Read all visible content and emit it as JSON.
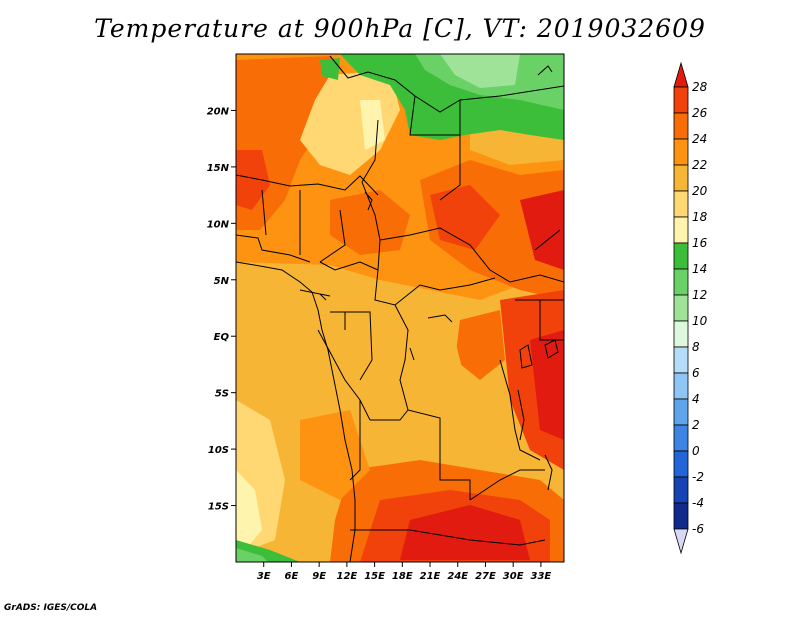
{
  "title": "Temperature at 900hPa [C], VT: 2019032609",
  "credit": "GrADS: IGES/COLA",
  "map": {
    "lon_range": [
      0,
      35.5
    ],
    "lat_range": [
      -20,
      25
    ],
    "lat_ticks": [
      {
        "value": 20,
        "label": "20N"
      },
      {
        "value": 15,
        "label": "15N"
      },
      {
        "value": 10,
        "label": "10N"
      },
      {
        "value": 5,
        "label": "5N"
      },
      {
        "value": 0,
        "label": "EQ"
      },
      {
        "value": -5,
        "label": "5S"
      },
      {
        "value": -10,
        "label": "10S"
      },
      {
        "value": -15,
        "label": "15S"
      }
    ],
    "lon_ticks": [
      {
        "value": 3,
        "label": "3E"
      },
      {
        "value": 6,
        "label": "6E"
      },
      {
        "value": 9,
        "label": "9E"
      },
      {
        "value": 12,
        "label": "12E"
      },
      {
        "value": 15,
        "label": "15E"
      },
      {
        "value": 18,
        "label": "18E"
      },
      {
        "value": 21,
        "label": "21E"
      },
      {
        "value": 24,
        "label": "24E"
      },
      {
        "value": 27,
        "label": "27E"
      },
      {
        "value": 30,
        "label": "30E"
      },
      {
        "value": 33,
        "label": "33E"
      }
    ]
  },
  "colorbar": {
    "levels": [
      "28",
      "26",
      "24",
      "22",
      "20",
      "18",
      "16",
      "14",
      "12",
      "10",
      "8",
      "6",
      "4",
      "2",
      "0",
      "-2",
      "-4",
      "-6"
    ],
    "colors": [
      "#e11b0f",
      "#f0420a",
      "#f96d06",
      "#fd9310",
      "#f7b536",
      "#ffd873",
      "#fff4ad",
      "#3dbe3b",
      "#6ad167",
      "#9ee398",
      "#ddf8dd",
      "#b5dcf9",
      "#8ec5f4",
      "#5ea5ec",
      "#3d84e3",
      "#2265d6",
      "#1744b5",
      "#0f2a8a",
      "#0d1a55"
    ],
    "colors_order": "top-to-bottom (warmest first)"
  }
}
